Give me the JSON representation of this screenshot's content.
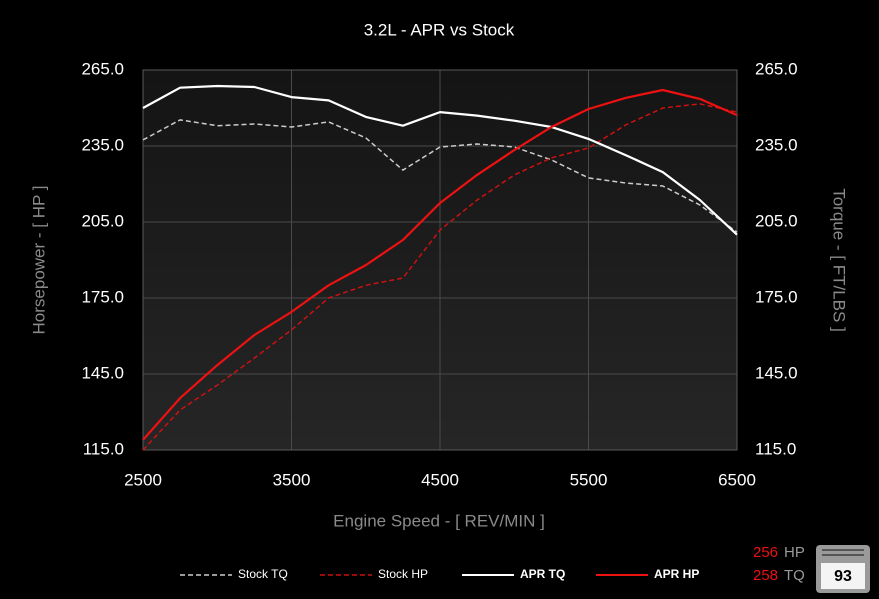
{
  "chart_data": {
    "type": "line",
    "title": "3.2L - APR vs Stock",
    "x_label": "Engine Speed - [ REV/MIN ]",
    "y_label": "Horsepower - [ HP ]",
    "y2_label": "Torque - [ FT/LBS ]",
    "x": [
      2500,
      2750,
      3000,
      3250,
      3500,
      3750,
      4000,
      4250,
      4500,
      4750,
      5000,
      5250,
      5500,
      5750,
      6000,
      6250,
      6500
    ],
    "xlim": [
      2500,
      6500
    ],
    "xticks": [
      2500,
      3500,
      4500,
      5500,
      6500
    ],
    "ylim": [
      115,
      265
    ],
    "yticks": [
      {
        "value": 115,
        "label": "115.0"
      },
      {
        "value": 145,
        "label": "145.0"
      },
      {
        "value": 175,
        "label": "175.0"
      },
      {
        "value": 205,
        "label": "205.0"
      },
      {
        "value": 235,
        "label": "235.0"
      },
      {
        "value": 265,
        "label": "265.0"
      }
    ],
    "y2lim": [
      115,
      265
    ],
    "y2ticks": [
      {
        "value": 115,
        "label": "115.0"
      },
      {
        "value": 145,
        "label": "145.0"
      },
      {
        "value": 175,
        "label": "175.0"
      },
      {
        "value": 205,
        "label": "205.0"
      },
      {
        "value": 235,
        "label": "235.0"
      },
      {
        "value": 265,
        "label": "265.0"
      }
    ],
    "grid": true,
    "series": [
      {
        "name": "Stock TQ",
        "color": "#cccccc",
        "dashed": true,
        "axis": "y2",
        "values": [
          237.4,
          245.3,
          243,
          243.7,
          242.5,
          244.5,
          238.2,
          225.5,
          234.6,
          235.8,
          234.6,
          229.5,
          222.4,
          220.4,
          219.2,
          211.7,
          201
        ]
      },
      {
        "name": "Stock HP",
        "color": "#cc1111",
        "dashed": true,
        "values": [
          115,
          130.8,
          140.6,
          151.3,
          162.4,
          175,
          180,
          182.9,
          201.8,
          213.7,
          223.6,
          230.3,
          234.2,
          243.3,
          250,
          251.6,
          248.4
        ]
      },
      {
        "name": "APR TQ",
        "color": "#ffffff",
        "dashed": false,
        "axis": "y2",
        "values": [
          250,
          258,
          258.7,
          258.3,
          254.3,
          253,
          246.5,
          243,
          248.4,
          247,
          245,
          242.5,
          237.8,
          231.4,
          224.7,
          213.7,
          200
        ]
      },
      {
        "name": "APR HP",
        "color": "#ee1111",
        "dashed": false,
        "values": [
          119,
          135.5,
          148.5,
          160.4,
          169.5,
          180,
          188,
          197.9,
          212.5,
          223.6,
          233.4,
          242.5,
          249.6,
          254,
          257.1,
          253.6,
          247.2
        ]
      }
    ],
    "peak_hp": {
      "value": 256,
      "unit": "HP"
    },
    "peak_tq": {
      "value": 258,
      "unit": "TQ"
    },
    "badge": "93"
  }
}
